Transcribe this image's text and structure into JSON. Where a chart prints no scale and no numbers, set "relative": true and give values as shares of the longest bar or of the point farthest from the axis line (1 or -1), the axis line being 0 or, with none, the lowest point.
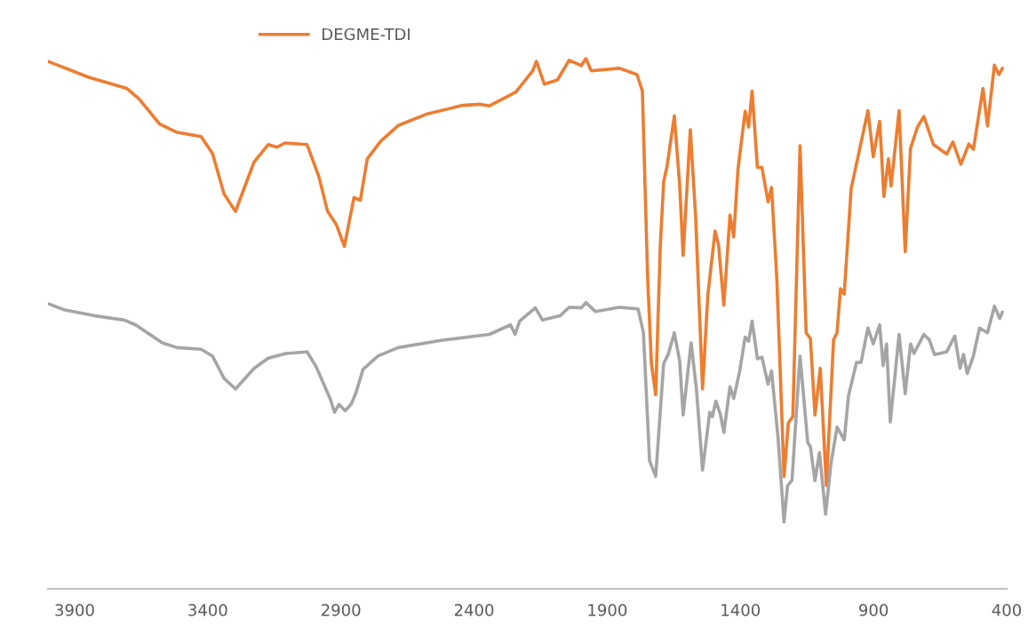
{
  "chart_data": {
    "type": "line",
    "relative": true,
    "xlim": [
      4000,
      400
    ],
    "xticks": [
      3900,
      3400,
      2900,
      2400,
      1900,
      1400,
      900,
      400
    ],
    "legend": "top",
    "grid": false,
    "marker": "none",
    "line_style": "solid",
    "series": [
      {
        "name": "DEGME-TDI",
        "color": "#ed7d31",
        "x": [
          4000,
          3847,
          3704,
          3658,
          3581,
          3515,
          3425,
          3382,
          3339,
          3296,
          3226,
          3173,
          3140,
          3110,
          3027,
          2983,
          2950,
          2917,
          2887,
          2851,
          2827,
          2801,
          2751,
          2685,
          2575,
          2442,
          2376,
          2342,
          2243,
          2180,
          2166,
          2136,
          2087,
          2043,
          1997,
          1980,
          1960,
          1854,
          1788,
          1768,
          1748,
          1734,
          1718,
          1701,
          1688,
          1675,
          1648,
          1628,
          1615,
          1588,
          1568,
          1542,
          1522,
          1495,
          1482,
          1462,
          1439,
          1425,
          1409,
          1382,
          1369,
          1356,
          1336,
          1319,
          1296,
          1283,
          1263,
          1236,
          1220,
          1203,
          1176,
          1153,
          1137,
          1120,
          1100,
          1077,
          1050,
          1037,
          1024,
          1010,
          984,
          921,
          901,
          877,
          861,
          844,
          834,
          804,
          781,
          761,
          735,
          711,
          675,
          625,
          602,
          572,
          542,
          525,
          489,
          472,
          446,
          429,
          416
        ],
        "values": [
          0.995,
          0.965,
          0.944,
          0.924,
          0.877,
          0.861,
          0.853,
          0.821,
          0.745,
          0.712,
          0.805,
          0.838,
          0.833,
          0.841,
          0.838,
          0.778,
          0.712,
          0.687,
          0.646,
          0.738,
          0.733,
          0.811,
          0.844,
          0.874,
          0.896,
          0.912,
          0.914,
          0.911,
          0.937,
          0.977,
          0.995,
          0.952,
          0.96,
          0.997,
          0.987,
          1.0,
          0.977,
          0.982,
          0.97,
          0.939,
          0.584,
          0.425,
          0.366,
          0.644,
          0.768,
          0.798,
          0.892,
          0.762,
          0.629,
          0.866,
          0.702,
          0.377,
          0.555,
          0.675,
          0.649,
          0.535,
          0.705,
          0.664,
          0.791,
          0.901,
          0.871,
          0.939,
          0.795,
          0.795,
          0.73,
          0.757,
          0.584,
          0.212,
          0.313,
          0.325,
          0.836,
          0.483,
          0.472,
          0.328,
          0.416,
          0.195,
          0.47,
          0.483,
          0.566,
          0.556,
          0.755,
          0.902,
          0.815,
          0.882,
          0.74,
          0.811,
          0.76,
          0.902,
          0.636,
          0.831,
          0.871,
          0.891,
          0.838,
          0.82,
          0.843,
          0.801,
          0.839,
          0.829,
          0.944,
          0.873,
          0.988,
          0.97,
          0.982
        ]
      },
      {
        "color": "#a5a5a5",
        "x": [
          4000,
          3937,
          3824,
          3714,
          3671,
          3571,
          3515,
          3425,
          3382,
          3339,
          3296,
          3226,
          3173,
          3106,
          3027,
          2993,
          2940,
          2924,
          2907,
          2884,
          2861,
          2844,
          2817,
          2761,
          2685,
          2518,
          2342,
          2263,
          2246,
          2229,
          2170,
          2143,
          2077,
          2043,
          1997,
          1980,
          1944,
          1854,
          1784,
          1764,
          1741,
          1718,
          1688,
          1671,
          1648,
          1628,
          1615,
          1585,
          1565,
          1542,
          1515,
          1505,
          1492,
          1475,
          1462,
          1439,
          1425,
          1402,
          1382,
          1369,
          1356,
          1336,
          1319,
          1296,
          1283,
          1259,
          1236,
          1223,
          1206,
          1176,
          1147,
          1137,
          1120,
          1103,
          1080,
          1060,
          1037,
          1010,
          994,
          964,
          947,
          921,
          901,
          877,
          864,
          851,
          837,
          804,
          781,
          761,
          748,
          711,
          691,
          671,
          625,
          595,
          575,
          562,
          548,
          525,
          502,
          472,
          446,
          426,
          416
        ],
        "values": [
          0.538,
          0.526,
          0.515,
          0.507,
          0.498,
          0.464,
          0.455,
          0.452,
          0.439,
          0.397,
          0.377,
          0.416,
          0.435,
          0.444,
          0.447,
          0.419,
          0.358,
          0.333,
          0.348,
          0.336,
          0.349,
          0.369,
          0.414,
          0.439,
          0.455,
          0.469,
          0.48,
          0.498,
          0.48,
          0.505,
          0.53,
          0.507,
          0.515,
          0.531,
          0.53,
          0.54,
          0.523,
          0.531,
          0.528,
          0.483,
          0.242,
          0.212,
          0.425,
          0.442,
          0.483,
          0.43,
          0.328,
          0.464,
          0.377,
          0.224,
          0.333,
          0.325,
          0.354,
          0.329,
          0.295,
          0.381,
          0.359,
          0.412,
          0.475,
          0.467,
          0.505,
          0.434,
          0.437,
          0.386,
          0.411,
          0.288,
          0.126,
          0.194,
          0.205,
          0.439,
          0.276,
          0.268,
          0.204,
          0.257,
          0.141,
          0.235,
          0.305,
          0.281,
          0.364,
          0.427,
          0.427,
          0.492,
          0.462,
          0.498,
          0.421,
          0.462,
          0.315,
          0.48,
          0.368,
          0.462,
          0.444,
          0.48,
          0.47,
          0.442,
          0.447,
          0.477,
          0.416,
          0.442,
          0.406,
          0.439,
          0.492,
          0.483,
          0.533,
          0.51,
          0.522
        ]
      }
    ]
  }
}
